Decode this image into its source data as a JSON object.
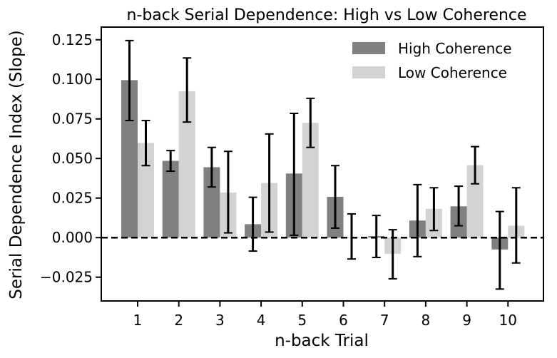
{
  "chart_data": {
    "type": "bar",
    "title": "n-back Serial Dependence: High vs Low Coherence",
    "xlabel": "n-back Trial",
    "ylabel": "Serial Dependence Index (Slope)",
    "categories": [
      "1",
      "2",
      "3",
      "4",
      "5",
      "6",
      "7",
      "8",
      "9",
      "10"
    ],
    "ylim": [
      -0.04,
      0.133
    ],
    "yticks": [
      -0.025,
      0.0,
      0.025,
      0.05,
      0.075,
      0.1,
      0.125
    ],
    "ytick_labels": [
      "−0.025",
      "0.000",
      "0.025",
      "0.050",
      "0.075",
      "0.100",
      "0.125"
    ],
    "reference_line": {
      "y": 0,
      "style": "dashed",
      "color": "#000000"
    },
    "grid": false,
    "legend_position": "top-right",
    "series": [
      {
        "name": "High Coherence",
        "color": "#808080",
        "values": [
          0.0995,
          0.0485,
          0.0445,
          0.0085,
          0.0405,
          0.0258,
          0.001,
          0.0108,
          0.0198,
          -0.0075
        ],
        "err_low": [
          0.074,
          0.042,
          0.032,
          -0.0085,
          0.0015,
          0.006,
          -0.0125,
          -0.012,
          0.0075,
          -0.0325
        ],
        "err_high": [
          0.1245,
          0.055,
          0.057,
          0.0255,
          0.0785,
          0.0455,
          0.014,
          0.0335,
          0.0325,
          0.0165
        ]
      },
      {
        "name": "Low Coherence",
        "color": "#d3d3d3",
        "values": [
          0.0598,
          0.0925,
          0.0285,
          0.0345,
          0.0725,
          0.0005,
          -0.0102,
          0.0182,
          0.0458,
          0.0075
        ],
        "err_low": [
          0.0455,
          0.073,
          0.003,
          0.0035,
          0.057,
          -0.0135,
          -0.026,
          0.0045,
          0.034,
          -0.016
        ],
        "err_high": [
          0.074,
          0.1135,
          0.0545,
          0.0655,
          0.088,
          0.015,
          0.005,
          0.0315,
          0.0575,
          0.0315
        ]
      }
    ]
  }
}
